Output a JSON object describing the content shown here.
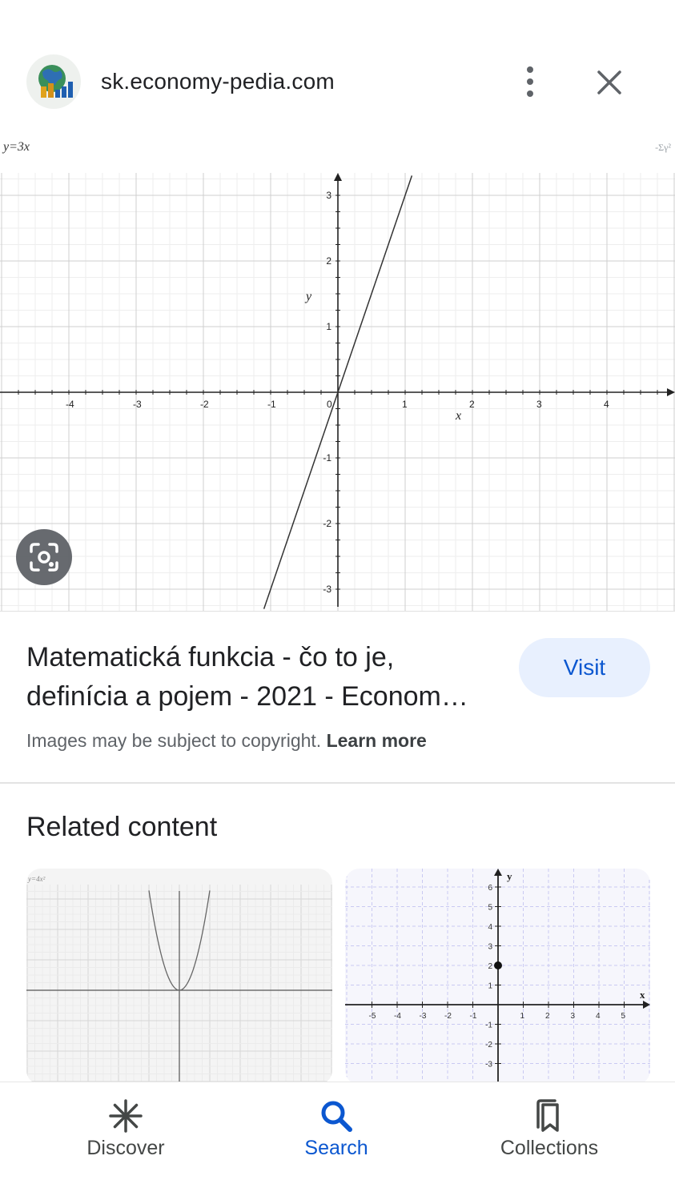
{
  "header": {
    "site": "sk.economy-pedia.com",
    "favicon_icon": "globe-chart-icon",
    "more_icon": "more-vert-icon",
    "close_icon": "close-icon"
  },
  "preview": {
    "corner_label": "y=3x",
    "corner_mark": "-Σγ²",
    "lens_icon": "lens-icon",
    "chart_data": {
      "type": "line",
      "title": "y=3x",
      "xlabel": "x",
      "ylabel": "y",
      "xlim": [
        -5,
        5
      ],
      "ylim": [
        -3.3,
        3.3
      ],
      "x_ticks": [
        "-4",
        "-3",
        "-2",
        "-1",
        "0",
        "1",
        "2",
        "3",
        "4"
      ],
      "y_ticks": [
        "3",
        "2",
        "1",
        "-1",
        "-2",
        "-3"
      ],
      "grid": true,
      "series": [
        {
          "x": [
            -1.1,
            1.1
          ],
          "y": [
            -3.3,
            3.3
          ]
        }
      ]
    }
  },
  "result": {
    "title_line1": "Matematická funkcia - čo to je,",
    "title_line2": "definícia a pojem - 2021 - Econom…",
    "visit_label": "Visit",
    "copyright_text": "Images may be subject to copyright.",
    "learn_more": "Learn more"
  },
  "related": {
    "title": "Related content",
    "items": [
      {
        "name": "parabola-graph",
        "corner_label": "y=4x²"
      },
      {
        "name": "point-graph",
        "x_axis": "x",
        "y_axis": "y"
      }
    ]
  },
  "nav": {
    "items": [
      {
        "label": "Discover",
        "icon": "asterisk-icon"
      },
      {
        "label": "Search",
        "icon": "search-icon"
      },
      {
        "label": "Collections",
        "icon": "bookmarks-icon"
      }
    ]
  },
  "colors": {
    "accent": "#0b57d0",
    "visit_bg": "#e8f0fe",
    "text": "#202124",
    "secondary_text": "#5f6368"
  }
}
